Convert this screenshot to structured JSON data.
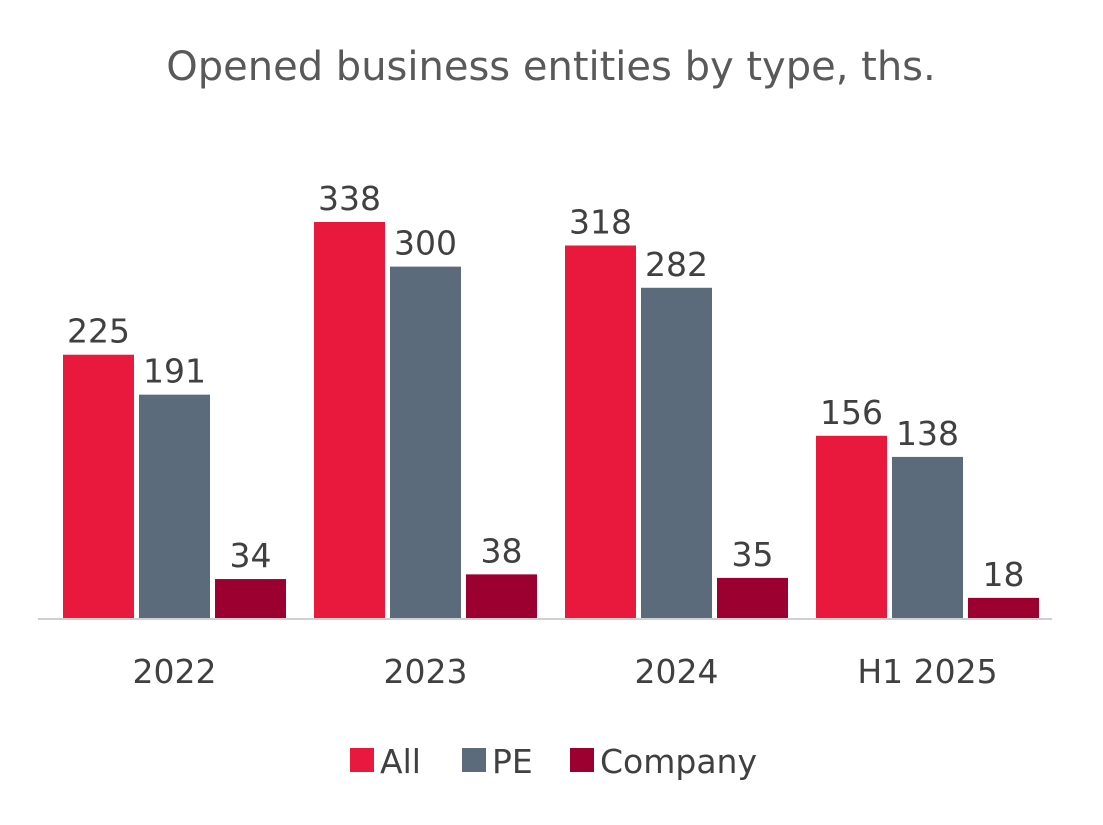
{
  "chart_data": {
    "type": "bar",
    "title": "Opened business entities by type, ths.",
    "xlabel": "",
    "ylabel": "",
    "categories": [
      "2022",
      "2023",
      "2024",
      "H1 2025"
    ],
    "series": [
      {
        "name": "All",
        "values": [
          225,
          338,
          318,
          156
        ],
        "color": "#E8193C"
      },
      {
        "name": "PE",
        "values": [
          191,
          300,
          282,
          138
        ],
        "color": "#5B6B7C"
      },
      {
        "name": "Company",
        "values": [
          34,
          38,
          35,
          18
        ],
        "color": "#9B0030"
      }
    ],
    "ylim": [
      0,
      338
    ],
    "grid": false,
    "legend": "bottom"
  }
}
